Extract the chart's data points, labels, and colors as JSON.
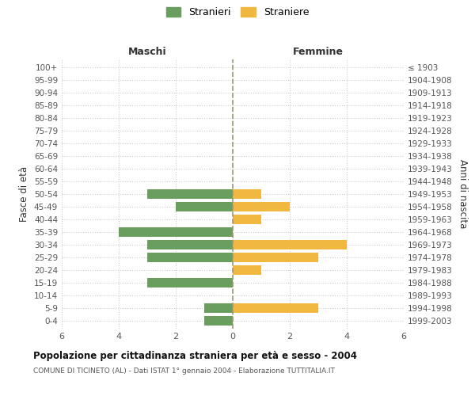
{
  "age_groups": [
    "0-4",
    "5-9",
    "10-14",
    "15-19",
    "20-24",
    "25-29",
    "30-34",
    "35-39",
    "40-44",
    "45-49",
    "50-54",
    "55-59",
    "60-64",
    "65-69",
    "70-74",
    "75-79",
    "80-84",
    "85-89",
    "90-94",
    "95-99",
    "100+"
  ],
  "birth_years": [
    "1999-2003",
    "1994-1998",
    "1989-1993",
    "1984-1988",
    "1979-1983",
    "1974-1978",
    "1969-1973",
    "1964-1968",
    "1959-1963",
    "1954-1958",
    "1949-1953",
    "1944-1948",
    "1939-1943",
    "1934-1938",
    "1929-1933",
    "1924-1928",
    "1919-1923",
    "1914-1918",
    "1909-1913",
    "1904-1908",
    "≤ 1903"
  ],
  "maschi": [
    1,
    1,
    0,
    3,
    0,
    3,
    3,
    4,
    0,
    2,
    3,
    0,
    0,
    0,
    0,
    0,
    0,
    0,
    0,
    0,
    0
  ],
  "femmine": [
    0,
    3,
    0,
    0,
    1,
    3,
    4,
    0,
    1,
    2,
    1,
    0,
    0,
    0,
    0,
    0,
    0,
    0,
    0,
    0,
    0
  ],
  "maschi_color": "#6a9e5e",
  "femmine_color": "#f0b840",
  "title": "Popolazione per cittadinanza straniera per età e sesso - 2004",
  "subtitle": "COMUNE DI TICINETO (AL) - Dati ISTAT 1° gennaio 2004 - Elaborazione TUTTITALIA.IT",
  "legend_stranieri": "Stranieri",
  "legend_straniere": "Straniere",
  "xlabel_left": "Maschi",
  "xlabel_right": "Femmine",
  "ylabel_left": "Fasce di età",
  "ylabel_right": "Anni di nascita",
  "xlim": 6,
  "background_color": "#ffffff",
  "grid_color": "#cccccc",
  "bar_height": 0.75
}
